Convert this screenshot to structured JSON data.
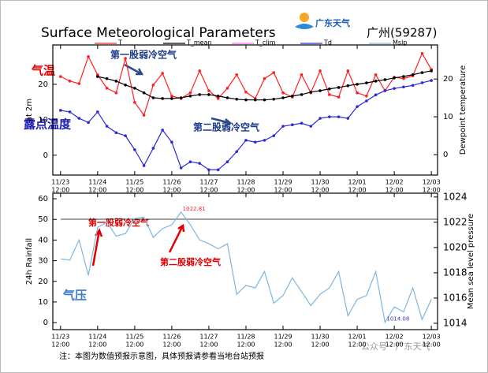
{
  "header": {
    "logo": "广东天气",
    "station": "广州(59287)"
  },
  "notes": [
    "第一股弱冷空气",
    "第二股弱冷空气",
    "气温",
    "露点温度",
    "第一股弱冷空气",
    "第二股弱冷空气",
    "气压"
  ],
  "footer": "注：本图为数值预报示意图，具体预报请参看当地台站预报",
  "watermark": "公众号 · 广东天气",
  "chart_data": [
    {
      "type": "line",
      "title": "Surface Meteorological Parameters",
      "ylabel": "at 2m",
      "y2label": "Dewpoint temperature",
      "xlim": [
        -5,
        244
      ],
      "xticks": [
        {
          "value": 0,
          "label": "11/23"
        },
        {
          "value": 24,
          "label": "11/24"
        },
        {
          "value": 48,
          "label": "11/25"
        },
        {
          "value": 72,
          "label": "11/26"
        },
        {
          "value": 96,
          "label": "11/27"
        },
        {
          "value": 120,
          "label": "11/28"
        },
        {
          "value": 144,
          "label": "11/29"
        },
        {
          "value": 168,
          "label": "11/30"
        },
        {
          "value": 192,
          "label": "12/01"
        },
        {
          "value": 216,
          "label": "12/02"
        },
        {
          "value": 240,
          "label": "12/03"
        }
      ],
      "xtick_sublabel": "12:00",
      "ylim": [
        -5.6,
        31.1
      ],
      "yticks": [
        0,
        10,
        20
      ],
      "y2lim": [
        -5.4,
        29
      ],
      "y2ticks": [
        0,
        10,
        20
      ],
      "x": [
        0,
        6,
        12,
        18,
        24,
        30,
        36,
        42,
        48,
        54,
        60,
        66,
        72,
        78,
        84,
        90,
        96,
        102,
        108,
        114,
        120,
        126,
        132,
        138,
        144,
        150,
        156,
        162,
        168,
        174,
        180,
        186,
        192,
        198,
        204,
        210,
        216,
        222,
        228,
        234,
        240
      ],
      "series": [
        {
          "name": "T",
          "color": "#ff2020",
          "markers": true,
          "values": [
            22.2,
            20.9,
            20.2,
            27.8,
            22.7,
            18.9,
            17.6,
            27.3,
            14.9,
            11.3,
            19.8,
            23.1,
            16.7,
            16,
            17.6,
            23.8,
            18.2,
            16,
            18.9,
            22.7,
            17.8,
            16,
            21.6,
            23.3,
            17.6,
            16.4,
            22.7,
            17.6,
            23.8,
            17.1,
            16.4,
            23.8,
            17.6,
            16.7,
            22.7,
            18.2,
            22,
            21.6,
            22.4,
            28.7,
            24.2
          ]
        },
        {
          "name": "T_mean",
          "color": "#000000",
          "markers": true,
          "values": [
            null,
            null,
            null,
            null,
            22.2,
            21.6,
            20.9,
            19.8,
            18.9,
            17.6,
            16.2,
            16,
            16,
            16.2,
            16.7,
            17.1,
            17.1,
            16.7,
            16.2,
            15.8,
            15.6,
            15.6,
            15.6,
            15.8,
            16.2,
            16.7,
            17.1,
            17.8,
            18.2,
            18.7,
            19.1,
            19.6,
            20,
            20.4,
            20.9,
            21.3,
            21.8,
            22.2,
            22.7,
            23.3,
            23.8
          ]
        },
        {
          "name": "T_clim",
          "color": "#ff66ff",
          "markers": false,
          "values": [
            null,
            null,
            null,
            null,
            null,
            null,
            null,
            null,
            null,
            null,
            null,
            null,
            null,
            null,
            null,
            null,
            null,
            null,
            null,
            null,
            null,
            null,
            null,
            null,
            null,
            null,
            null,
            null,
            null,
            null,
            null,
            null,
            null,
            null,
            null,
            null,
            null,
            null,
            null,
            null,
            null
          ]
        },
        {
          "name": "Td",
          "color": "#2a2ad8",
          "markers": true,
          "axis": "y2",
          "values": [
            11.7,
            11.3,
            9.6,
            8.5,
            11.3,
            7.5,
            5.8,
            5,
            1.3,
            -2.9,
            1.7,
            6.5,
            3.3,
            -3.5,
            -1.9,
            -2.3,
            -4,
            -4,
            -1.9,
            0.8,
            3.8,
            3.3,
            3.8,
            5,
            7.5,
            7.9,
            8.3,
            7.5,
            9.6,
            10,
            10,
            9.6,
            12.7,
            14.2,
            15.8,
            16.9,
            17.5,
            17.9,
            18.3,
            19,
            19.6
          ]
        }
      ]
    },
    {
      "type": "line",
      "ylabel": "24h Rainfall",
      "y2label": "Mean sea level pressure",
      "xlim": [
        -5,
        244
      ],
      "xticks": [
        {
          "value": 0,
          "label": "11/23"
        },
        {
          "value": 24,
          "label": "11/24"
        },
        {
          "value": 48,
          "label": "11/25"
        },
        {
          "value": 72,
          "label": "11/26"
        },
        {
          "value": 96,
          "label": "11/27"
        },
        {
          "value": 120,
          "label": "11/28"
        },
        {
          "value": 144,
          "label": "11/29"
        },
        {
          "value": 168,
          "label": "11/30"
        },
        {
          "value": 192,
          "label": "12/01"
        },
        {
          "value": 216,
          "label": "12/02"
        },
        {
          "value": 240,
          "label": "12/03"
        }
      ],
      "xtick_sublabel": "12:00",
      "ylim": [
        -3.4,
        62.7
      ],
      "yticks": [
        0,
        10,
        20,
        30,
        40,
        50,
        60
      ],
      "y2lim": [
        1013.5,
        1024.3
      ],
      "y2ticks": [
        1014,
        1016,
        1018,
        1020,
        1022,
        1024
      ],
      "x": [
        0,
        6,
        12,
        18,
        24,
        30,
        36,
        42,
        48,
        54,
        60,
        66,
        72,
        78,
        84,
        90,
        96,
        102,
        108,
        114,
        120,
        126,
        132,
        138,
        144,
        150,
        156,
        162,
        168,
        174,
        180,
        186,
        192,
        198,
        204,
        210,
        216,
        222,
        228,
        234,
        240
      ],
      "series": [
        {
          "name": "Mslp",
          "color": "#7cb6e0",
          "markers": false,
          "axis": "y2",
          "values": [
            1019.1,
            1019,
            1020.6,
            1017.8,
            1021.6,
            1022,
            1020.9,
            1021.1,
            1022.3,
            1022.4,
            1020.8,
            1021.5,
            1021.8,
            1022.81,
            1021.8,
            1020.6,
            1020.3,
            1019.9,
            1020.3,
            1016.3,
            1017,
            1016.8,
            1018.1,
            1015.6,
            1016.2,
            1017.6,
            1016.5,
            1015.4,
            1016.3,
            1016.8,
            1018.1,
            1014.6,
            1015.9,
            1016.2,
            1018.1,
            1014.08,
            1015.3,
            1014.9,
            1016.8,
            1014.3,
            1015.9
          ]
        }
      ],
      "annotations": [
        {
          "x": 78,
          "y": 1022.81,
          "label": "1022.81",
          "color": "#ff2020"
        },
        {
          "x": 210,
          "y": 1014.08,
          "label": "1014.08",
          "color": "#3333cc"
        }
      ]
    }
  ]
}
